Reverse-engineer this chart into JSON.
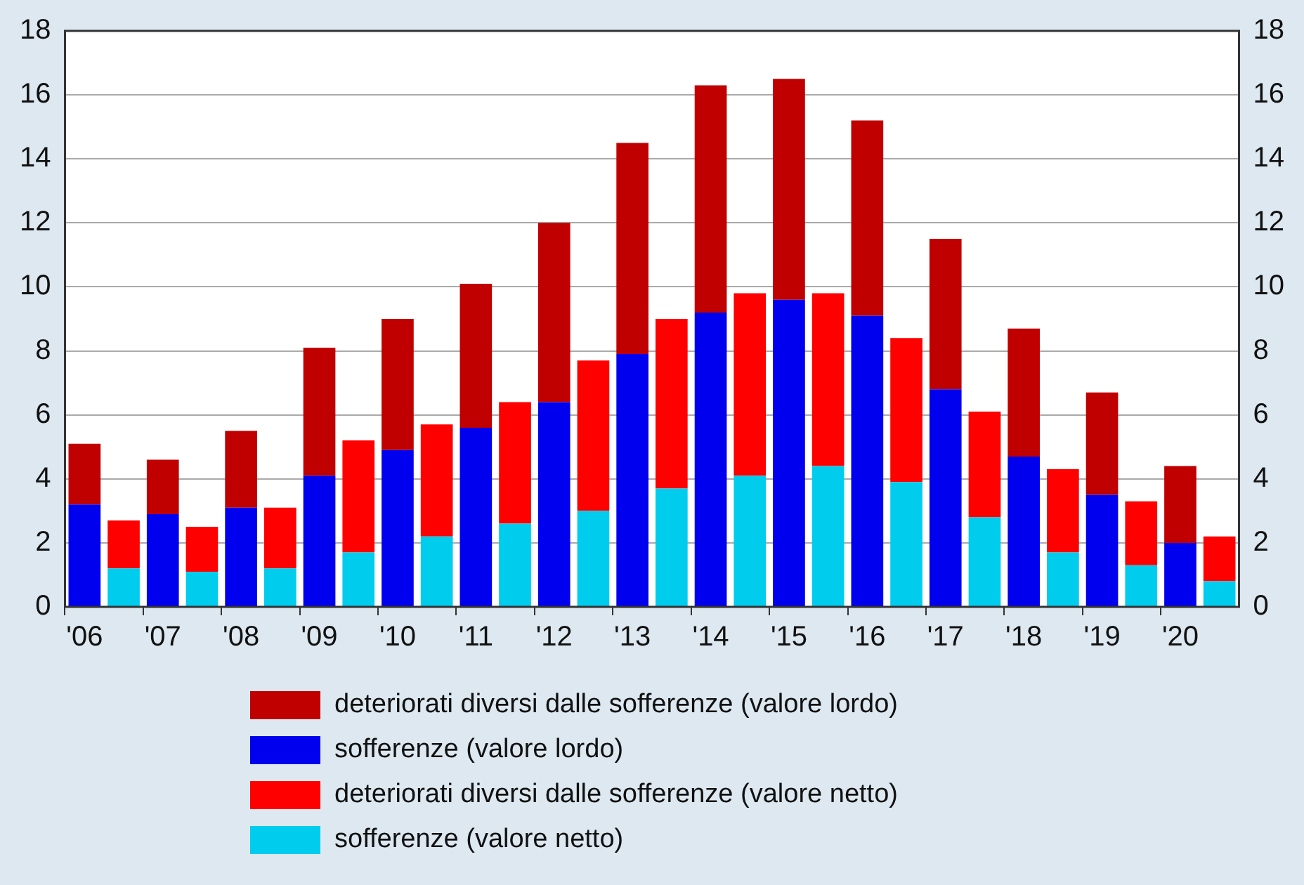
{
  "chart_data": {
    "type": "bar",
    "stacked": true,
    "categories": [
      "'06",
      null,
      "'07",
      null,
      "'08",
      null,
      "'09",
      null,
      "'10",
      null,
      "'11",
      null,
      "'12",
      null,
      "'13",
      null,
      "'14",
      null,
      "'15",
      null,
      "'16",
      null,
      "'17",
      null,
      "'18",
      null,
      "'19",
      null,
      "'20",
      null
    ],
    "series": [
      {
        "name": "sofferenze (valore lordo)",
        "color": "#0000ee",
        "values": [
          3.2,
          null,
          2.9,
          null,
          3.1,
          null,
          4.1,
          null,
          4.9,
          null,
          5.6,
          null,
          6.4,
          null,
          7.9,
          null,
          9.2,
          null,
          9.6,
          null,
          9.1,
          null,
          6.8,
          null,
          4.7,
          null,
          3.5,
          null,
          2.0,
          null
        ]
      },
      {
        "name": "deteriorati diversi dalle sofferenze (valore lordo)",
        "color": "#c00000",
        "values": [
          1.9,
          null,
          1.7,
          null,
          2.4,
          null,
          4.0,
          null,
          4.1,
          null,
          4.5,
          null,
          5.6,
          null,
          6.6,
          null,
          7.1,
          null,
          6.9,
          null,
          6.1,
          null,
          4.7,
          null,
          4.0,
          null,
          3.2,
          null,
          2.4,
          null
        ]
      },
      {
        "name": "sofferenze (valore netto)",
        "color": "#00ccee",
        "values": [
          null,
          1.2,
          null,
          1.1,
          null,
          1.2,
          null,
          1.7,
          null,
          2.2,
          null,
          2.6,
          null,
          3.0,
          null,
          3.7,
          null,
          4.1,
          null,
          4.4,
          null,
          3.9,
          null,
          2.8,
          null,
          1.7,
          null,
          1.3,
          null,
          0.8
        ]
      },
      {
        "name": "deteriorati diversi dalle sofferenze (valore netto)",
        "color": "#ff0000",
        "values": [
          null,
          1.5,
          null,
          1.4,
          null,
          1.9,
          null,
          3.5,
          null,
          3.5,
          null,
          3.8,
          null,
          4.7,
          null,
          5.3,
          null,
          5.7,
          null,
          5.4,
          null,
          4.5,
          null,
          3.3,
          null,
          2.6,
          null,
          2.0,
          null,
          1.4
        ]
      }
    ],
    "ylim": [
      0,
      18
    ],
    "yticks": [
      0,
      2,
      4,
      6,
      8,
      10,
      12,
      14,
      16,
      18
    ],
    "y2lim": [
      0,
      18
    ],
    "y2ticks": [
      0,
      2,
      4,
      6,
      8,
      10,
      12,
      14,
      16,
      18
    ],
    "grid": "y",
    "legend": "bottom"
  }
}
